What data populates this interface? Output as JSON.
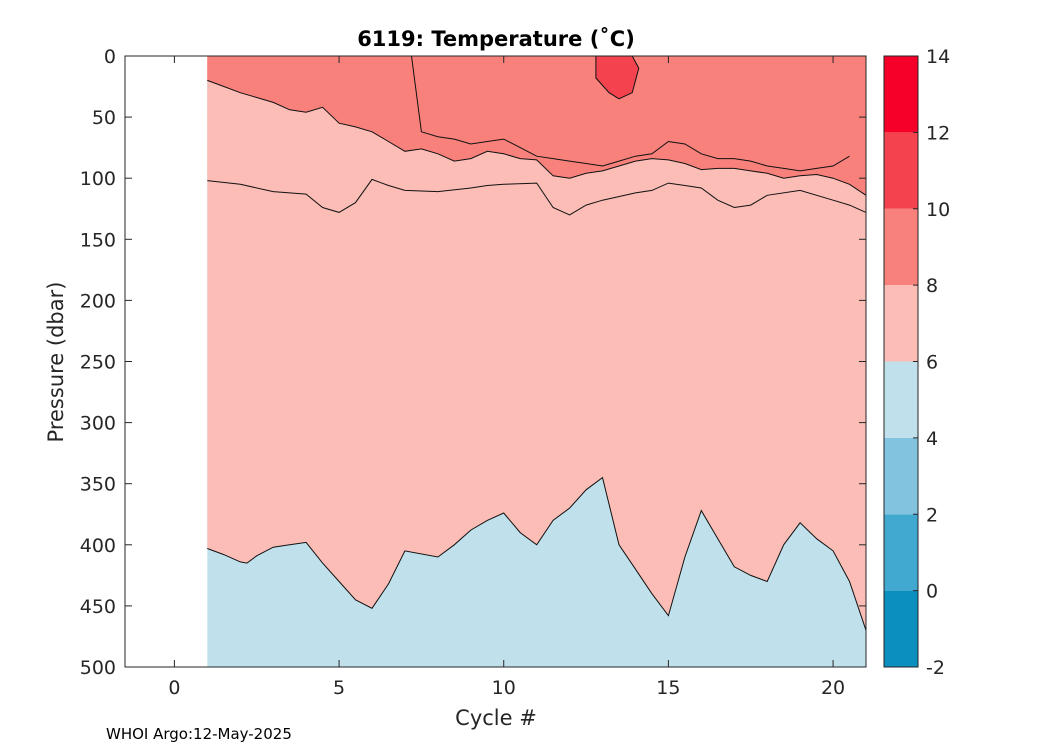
{
  "chart_data": {
    "type": "heatmap",
    "title": "6119:  Temperature (˚C)",
    "xlabel": "Cycle #",
    "ylabel": "Pressure (dbar)",
    "xlim": [
      -1.5,
      21
    ],
    "ylim": [
      500,
      0
    ],
    "x_ticks": [
      0,
      5,
      10,
      15,
      20
    ],
    "y_ticks": [
      0,
      50,
      100,
      150,
      200,
      250,
      300,
      350,
      400,
      450,
      500
    ],
    "data_x_range": [
      1,
      21
    ],
    "colorbar": {
      "range": [
        -2,
        14
      ],
      "ticks": [
        -2,
        0,
        2,
        4,
        6,
        8,
        10,
        12,
        14
      ],
      "levels": [
        {
          "from": -2,
          "to": 0,
          "color": "#0b8fbf"
        },
        {
          "from": 0,
          "to": 2,
          "color": "#41a8cf"
        },
        {
          "from": 2,
          "to": 4,
          "color": "#82c4e0"
        },
        {
          "from": 4,
          "to": 6,
          "color": "#c0e1ec"
        },
        {
          "from": 6,
          "to": 8,
          "color": "#fbbdb6"
        },
        {
          "from": 8,
          "to": 10,
          "color": "#f9817c"
        },
        {
          "from": 10,
          "to": 12,
          "color": "#f4424f"
        },
        {
          "from": 12,
          "to": 14,
          "color": "#f6002a"
        }
      ]
    },
    "contours": {
      "iso6_pressure": {
        "x": [
          1,
          1.5,
          2,
          2.2,
          2.5,
          3,
          3.5,
          4,
          4.5,
          5,
          5.5,
          6,
          6.5,
          7,
          8,
          8.5,
          9,
          9.5,
          10,
          10.5,
          11,
          11.5,
          12,
          12.5,
          13,
          13.5,
          14,
          14.5,
          15,
          15.5,
          16,
          16.5,
          17,
          17.5,
          18,
          18.5,
          19,
          19.5,
          20,
          20.5,
          21
        ],
        "y": [
          403,
          408,
          414,
          415,
          409,
          402,
          400,
          398,
          415,
          430,
          445,
          452,
          432,
          405,
          410,
          400,
          388,
          380,
          374,
          390,
          400,
          380,
          370,
          355,
          345,
          400,
          420,
          440,
          458,
          410,
          372,
          395,
          418,
          425,
          430,
          400,
          382,
          395,
          405,
          430,
          470
        ]
      },
      "iso8_pressure": {
        "x": [
          1,
          2,
          3,
          4,
          4.5,
          5,
          5.5,
          6,
          6.5,
          7,
          8,
          9,
          9.5,
          10,
          11,
          11.5,
          12,
          12.5,
          13,
          14,
          14.5,
          15,
          15.5,
          16,
          16.5,
          17,
          17.5,
          18,
          19,
          20,
          20.5,
          21
        ],
        "y": [
          102,
          105,
          111,
          113,
          124,
          128,
          120,
          101,
          106,
          110,
          111,
          108,
          106,
          105,
          104,
          124,
          130,
          122,
          118,
          112,
          110,
          104,
          106,
          108,
          118,
          124,
          122,
          114,
          110,
          118,
          122,
          128
        ]
      },
      "iso10_pressure": {
        "x": [
          1,
          1.5,
          2,
          2.5,
          3,
          3.5,
          4,
          4.5,
          5,
          5.5,
          6,
          6.5,
          7,
          7.5,
          8,
          8.5,
          9,
          9.5,
          10,
          10.5,
          11,
          11.5,
          12,
          12.5,
          13,
          13.5,
          14,
          14.5,
          15,
          15.5,
          16,
          16.5,
          17,
          17.5,
          18,
          18.5,
          19,
          19.5,
          20,
          20.5,
          21
        ],
        "y": [
          20,
          25,
          30,
          34,
          38,
          44,
          46,
          42,
          55,
          58,
          62,
          70,
          78,
          76,
          80,
          86,
          84,
          78,
          80,
          84,
          85,
          98,
          100,
          96,
          94,
          90,
          86,
          84,
          85,
          88,
          93,
          92,
          92,
          94,
          96,
          100,
          98,
          97,
          100,
          105,
          114
        ]
      },
      "iso10_lower_bound": {
        "x": [
          7.2,
          7.5,
          8,
          8.5,
          9,
          9.5,
          10,
          10.5,
          11,
          11.5,
          12,
          12.5,
          13,
          13.5,
          14,
          14.5,
          15,
          15.5,
          16,
          16.5,
          17,
          17.5,
          18,
          18.5,
          19,
          19.5,
          20,
          20.5
        ],
        "y": [
          0,
          62,
          66,
          68,
          72,
          70,
          68,
          75,
          82,
          84,
          86,
          88,
          90,
          86,
          82,
          80,
          70,
          72,
          80,
          84,
          84,
          86,
          90,
          92,
          94,
          92,
          90,
          82
        ]
      },
      "iso12_patch": {
        "x": [
          12.8,
          12.8,
          13.2,
          13.5,
          13.9,
          14.1,
          13.9,
          13.5
        ],
        "y": [
          0,
          18,
          30,
          35,
          30,
          10,
          0,
          0
        ]
      }
    }
  },
  "footer": "WHOI Argo:12-May-2025"
}
